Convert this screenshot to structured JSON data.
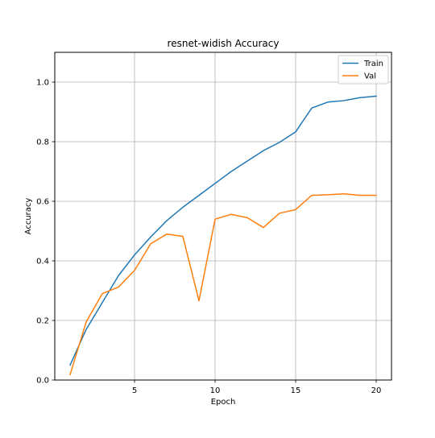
{
  "chart_data": {
    "type": "line",
    "title": "resnet-widish Accuracy",
    "xlabel": "Epoch",
    "ylabel": "Accuracy",
    "xlim": [
      0.05,
      20.95
    ],
    "ylim": [
      0.0,
      1.1
    ],
    "xticks": [
      5,
      10,
      15,
      20
    ],
    "yticks": [
      0.0,
      0.2,
      0.4,
      0.6,
      0.8,
      1.0
    ],
    "xtick_labels": [
      "5",
      "10",
      "15",
      "20"
    ],
    "ytick_labels": [
      "0.0",
      "0.2",
      "0.4",
      "0.6",
      "0.8",
      "1.0"
    ],
    "grid": true,
    "legend_position": "top-right",
    "x": [
      1,
      2,
      3,
      4,
      5,
      6,
      7,
      8,
      9,
      10,
      11,
      12,
      13,
      14,
      15,
      16,
      17,
      18,
      19,
      20
    ],
    "series": [
      {
        "name": "Train",
        "color": "#1f77b4",
        "values": [
          0.05,
          0.17,
          0.26,
          0.35,
          0.42,
          0.48,
          0.535,
          0.58,
          0.62,
          0.66,
          0.7,
          0.735,
          0.77,
          0.798,
          0.833,
          0.913,
          0.933,
          0.938,
          0.948,
          0.953
        ]
      },
      {
        "name": "Val",
        "color": "#ff7f0e",
        "values": [
          0.018,
          0.195,
          0.29,
          0.312,
          0.368,
          0.457,
          0.49,
          0.482,
          0.266,
          0.54,
          0.556,
          0.545,
          0.512,
          0.56,
          0.572,
          0.62,
          0.622,
          0.625,
          0.62,
          0.62
        ]
      }
    ]
  }
}
